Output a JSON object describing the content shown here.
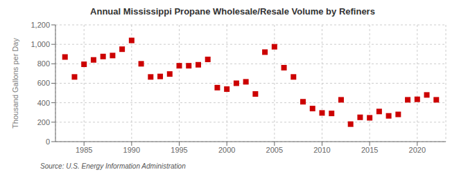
{
  "chart_data": {
    "type": "scatter",
    "title": "Annual Mississippi Propane Wholesale/Resale Volume by Refiners",
    "ylabel": "Thousand Gallons per Day",
    "annotations": [
      "Source: U.S. Energy Information Administration"
    ],
    "color": "#cc0000",
    "marker": "square",
    "grid": true,
    "xlim": [
      1982,
      2023
    ],
    "xticks": [
      1985,
      1990,
      1995,
      2000,
      2005,
      2010,
      2015,
      2020
    ],
    "ylim": [
      0,
      1200
    ],
    "yticks": [
      0,
      200,
      400,
      600,
      800,
      {
        "value": 1000,
        "label": "1,000"
      },
      {
        "value": 1200,
        "label": "1,200"
      }
    ],
    "x": [
      1983,
      1984,
      1985,
      1986,
      1987,
      1988,
      1989,
      1990,
      1991,
      1992,
      1993,
      1994,
      1995,
      1996,
      1997,
      1998,
      1999,
      2000,
      2001,
      2002,
      2003,
      2004,
      2005,
      2006,
      2007,
      2008,
      2009,
      2010,
      2011,
      2012,
      2013,
      2014,
      2015,
      2016,
      2017,
      2018,
      2019,
      2020,
      2021,
      2022
    ],
    "values": [
      870,
      665,
      795,
      840,
      875,
      885,
      950,
      1040,
      800,
      665,
      670,
      695,
      780,
      780,
      790,
      845,
      555,
      540,
      600,
      615,
      490,
      920,
      975,
      760,
      665,
      410,
      340,
      295,
      290,
      430,
      180,
      250,
      245,
      310,
      265,
      280,
      430,
      435,
      480,
      430
    ]
  }
}
